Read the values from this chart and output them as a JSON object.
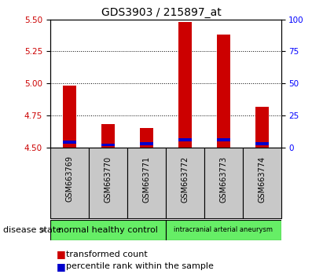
{
  "title": "GDS3903 / 215897_at",
  "samples": [
    "GSM663769",
    "GSM663770",
    "GSM663771",
    "GSM663772",
    "GSM663773",
    "GSM663774"
  ],
  "red_values": [
    4.98,
    4.68,
    4.65,
    5.48,
    5.38,
    4.82
  ],
  "blue_values": [
    4.54,
    4.52,
    4.53,
    4.56,
    4.56,
    4.53
  ],
  "ylim_left": [
    4.5,
    5.5
  ],
  "yticks_left": [
    4.5,
    4.75,
    5.0,
    5.25,
    5.5
  ],
  "yticks_right": [
    0,
    25,
    50,
    75,
    100
  ],
  "ylim_right": [
    0,
    100
  ],
  "bar_width": 0.35,
  "red_color": "#CC0000",
  "blue_color": "#0000CC",
  "bg_color": "#C8C8C8",
  "group1_label": "normal healthy control",
  "group2_label": "intracranial arterial aneurysm",
  "group_color": "#66EE66",
  "disease_state_label": "disease state",
  "title_fontsize": 10,
  "tick_fontsize": 7.5,
  "label_fontsize": 7,
  "legend_fontsize": 8
}
